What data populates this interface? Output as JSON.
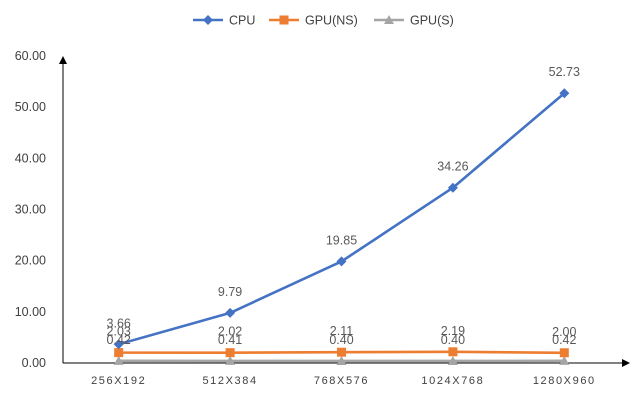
{
  "chart_data": {
    "type": "line",
    "title": "",
    "xlabel": "",
    "ylabel": "",
    "categories": [
      "256X192",
      "512X384",
      "768X576",
      "1024X768",
      "1280X960"
    ],
    "ylim": [
      0,
      60
    ],
    "yticks": [
      "0.00",
      "10.00",
      "20.00",
      "30.00",
      "40.00",
      "50.00",
      "60.00"
    ],
    "grid": false,
    "legend_position": "top-center",
    "series": [
      {
        "name": "CPU",
        "color": "#4472C4",
        "marker": "diamond",
        "values": [
          3.66,
          9.79,
          19.85,
          34.26,
          52.73
        ],
        "labels": [
          "3.66",
          "9.79",
          "19.85",
          "34.26",
          "52.73"
        ]
      },
      {
        "name": "GPU(NS)",
        "color": "#ED7D31",
        "marker": "square",
        "values": [
          2.03,
          2.02,
          2.11,
          2.19,
          2.0
        ],
        "labels": [
          "2.03",
          "2.02",
          "2.11",
          "2.19",
          "2.00"
        ]
      },
      {
        "name": "GPU(S)",
        "color": "#A5A5A5",
        "marker": "triangle",
        "values": [
          0.42,
          0.41,
          0.4,
          0.4,
          0.42
        ],
        "labels": [
          "0.42",
          "0.41",
          "0.40",
          "0.40",
          "0.42"
        ]
      }
    ]
  }
}
